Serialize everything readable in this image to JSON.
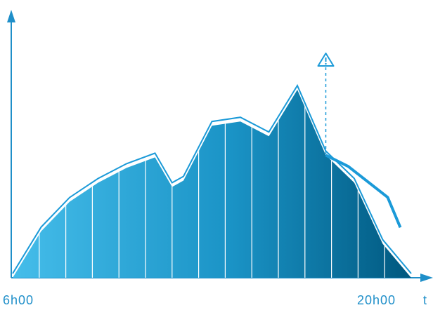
{
  "chart_data": {
    "type": "area",
    "title": "",
    "xlabel": "t",
    "ylabel": "",
    "x_tick_labels": [
      "6h00",
      "20h00"
    ],
    "x": [
      6,
      7,
      8,
      9,
      10,
      11,
      11.6,
      12,
      13,
      14,
      15,
      16,
      17,
      18,
      19,
      20
    ],
    "series": [
      {
        "values": [
          0,
          22,
          36,
          45,
          52,
          57,
          43,
          46,
          72,
          74,
          67,
          89,
          58,
          45,
          16,
          0
        ]
      }
    ],
    "alert_line": {
      "x": 17,
      "values_from_alert": [
        58,
        55,
        41,
        29
      ]
    },
    "colors": {
      "axis": "#1f8fc9",
      "gradient_start": "#45bdea",
      "gradient_end": "#00587f",
      "alert_line": "#1b9ad8",
      "dividers": "#ffffff"
    },
    "icons": {
      "alert": "warning-icon"
    }
  }
}
